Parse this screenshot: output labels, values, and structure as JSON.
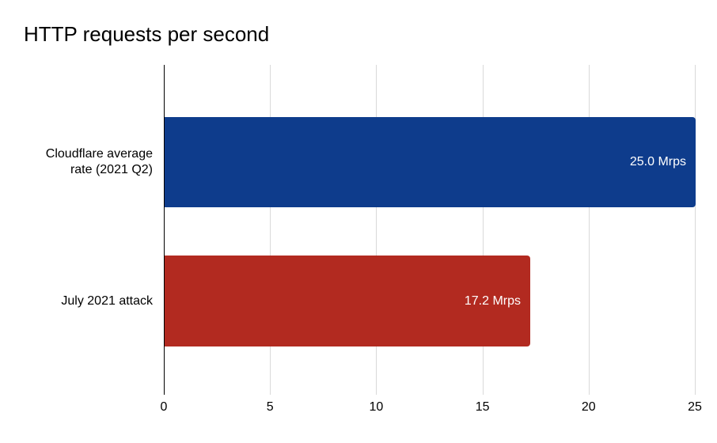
{
  "chart_data": {
    "type": "bar",
    "orientation": "horizontal",
    "title": "HTTP requests per second",
    "categories": [
      "Cloudflare average rate (2021 Q2)",
      "July 2021 attack"
    ],
    "category_lines": [
      [
        "Cloudflare average",
        "rate (2021 Q2)"
      ],
      [
        "July 2021 attack"
      ]
    ],
    "values": [
      25.0,
      17.2
    ],
    "value_labels": [
      "25.0 Mrps",
      "17.2 Mrps"
    ],
    "unit": "Mrps",
    "bar_colors": [
      "#0e3c8c",
      "#b22a20"
    ],
    "x_ticks": [
      0,
      5,
      10,
      15,
      20,
      25
    ],
    "xlim": [
      0,
      25
    ],
    "xlabel": "",
    "ylabel": "",
    "grid": true,
    "legend_position": "none",
    "gridline_color": "#d9d9d9",
    "axis_line_color": "#000000",
    "value_label_color": "#ffffff",
    "text_color": "#000000",
    "background_color": "#ffffff"
  }
}
